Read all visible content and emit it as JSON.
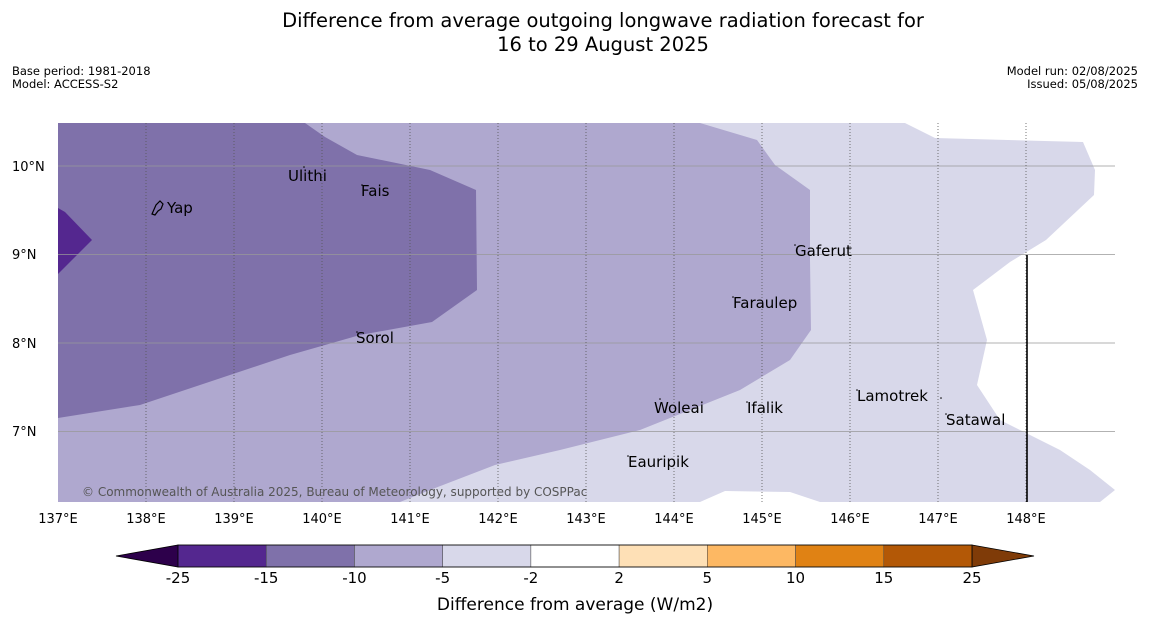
{
  "title": {
    "line1": "Difference from average outgoing longwave radiation forecast for",
    "line2": "16 to 29 August 2025"
  },
  "meta_left": {
    "base_period": "Base period: 1981-2018",
    "model": "Model: ACCESS-S2"
  },
  "meta_right": {
    "model_run": "Model run: 02/08/2025",
    "issued": "Issued: 05/08/2025"
  },
  "map": {
    "places": [
      "Ulithi",
      "Fais",
      "Yap",
      "Gaferut",
      "Faraulep",
      "Sorol",
      "Woleai",
      "Ifalik",
      "Lamotrek",
      "Satawal",
      "Eauripik"
    ],
    "lon_labels": [
      "137°E",
      "138°E",
      "139°E",
      "140°E",
      "141°E",
      "142°E",
      "143°E",
      "144°E",
      "145°E",
      "146°E",
      "147°E",
      "148°E"
    ],
    "lat_labels": [
      "10°N",
      "9°N",
      "8°N",
      "7°N"
    ],
    "copyright": "© Commonwealth of Australia 2025, Bureau of Meteorology, supported by COSPPac",
    "fill_colors": {
      "minus25_minus15": "#54278f",
      "minus15_minus10": "#7f71aa",
      "minus10_minus5": "#afa8cf",
      "minus5_minus2": "#d8d8ea"
    }
  },
  "colorbar": {
    "ticks": [
      "-25",
      "-15",
      "-10",
      "-5",
      "-2",
      "2",
      "5",
      "10",
      "15",
      "25"
    ],
    "colors": [
      "#54278f",
      "#7f71aa",
      "#afa8cf",
      "#d8d8ea",
      "#ffffff",
      "#fee0b6",
      "#fdb863",
      "#e08214",
      "#b35806"
    ],
    "low_extend_color": "#2d004b",
    "high_extend_color": "#7f3b08",
    "label": "Difference from average (W/m2)"
  }
}
